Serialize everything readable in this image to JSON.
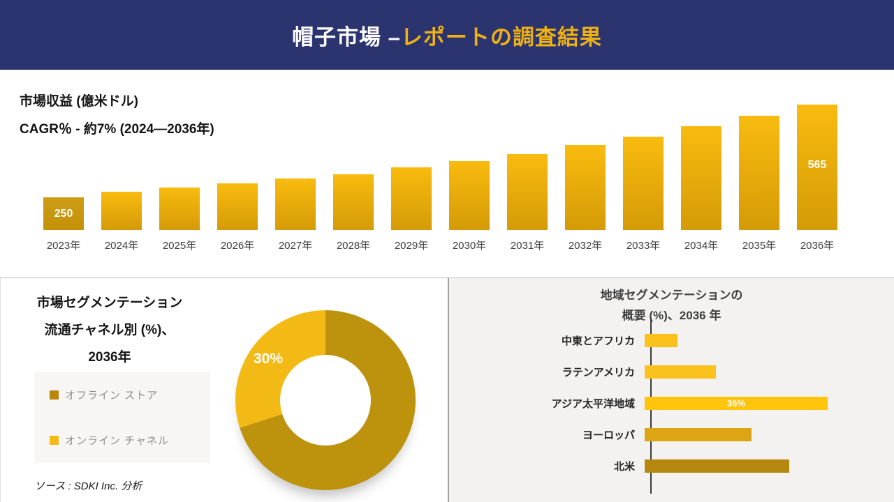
{
  "header": {
    "title_white": "帽子市場 –",
    "title_gold": "レポートの調査結果",
    "bg_color": "#2B346F",
    "accent_color": "#F0B213"
  },
  "revenue": {
    "metric_label": "市場収益 (億米ドル)",
    "cagr_label": "CAGR％ - 約7% (2024―2036年)"
  },
  "segmentation": {
    "title_line1": "市場セグメンテーション",
    "title_line2": "流通チャネル別 (%)、",
    "title_line3": "2036年",
    "legend": [
      {
        "label": "オフライン ストア",
        "color": "#B8860B"
      },
      {
        "label": "オンライン チャネル",
        "color": "#F3BA16"
      }
    ],
    "donut_label": "30%"
  },
  "regional": {
    "title_line1": "地域セグメンテーションの",
    "title_line2": "概要 (%)、2036 年"
  },
  "source": {
    "text": "ソース : SDKI Inc. 分析"
  },
  "chart_data": [
    {
      "type": "bar",
      "title": "市場収益 (億米ドル)",
      "subtitle": "CAGR％ - 約7% (2024―2036年)",
      "categories": [
        "2023年",
        "2024年",
        "2025年",
        "2026年",
        "2027年",
        "2028年",
        "2029年",
        "2030年",
        "2031年",
        "2032年",
        "2033年",
        "2034年",
        "2035年",
        "2036年"
      ],
      "values": [
        250,
        269,
        283,
        297,
        314,
        328,
        352,
        373,
        397,
        428,
        456,
        492,
        527,
        565
      ],
      "value_labels": [
        "250",
        "",
        "",
        "",
        "",
        "",
        "",
        "",
        "",
        "",
        "",
        "",
        "",
        "565"
      ],
      "ylim": [
        250,
        565
      ],
      "bar_color_top": "#F9BB0E",
      "bar_color_bottom": "#D49B07",
      "first_bar_color_top": "#CF9D15",
      "first_bar_color_bottom": "#C29107",
      "grid": false,
      "legend_position": "none"
    },
    {
      "type": "pie",
      "title": "市場セグメンテーション 流通チャネル別 (%)、2036年",
      "labels": [
        "オフライン ストア",
        "オンライン チャネル"
      ],
      "values": [
        70,
        30
      ],
      "value_labels": [
        "",
        "30%"
      ],
      "colors": [
        "#BD920D",
        "#F3BA16"
      ],
      "donut": true,
      "legend_position": "left"
    },
    {
      "type": "bar",
      "orientation": "horizontal",
      "title": "地域セグメンテーションの 概要 (%)、2036 年",
      "categories": [
        "中東とアフリカ",
        "ラテンアメリカ",
        "アジア太平洋地域",
        "ヨーロッパ",
        "北米"
      ],
      "values": [
        6.5,
        14,
        36,
        21,
        28.5
      ],
      "value_labels": [
        "",
        "",
        "36%",
        "",
        ""
      ],
      "colors": [
        "#FBC21E",
        "#FBC21E",
        "#FFC40C",
        "#DDA514",
        "#B5870E"
      ],
      "grid": false,
      "legend_position": "none"
    }
  ]
}
